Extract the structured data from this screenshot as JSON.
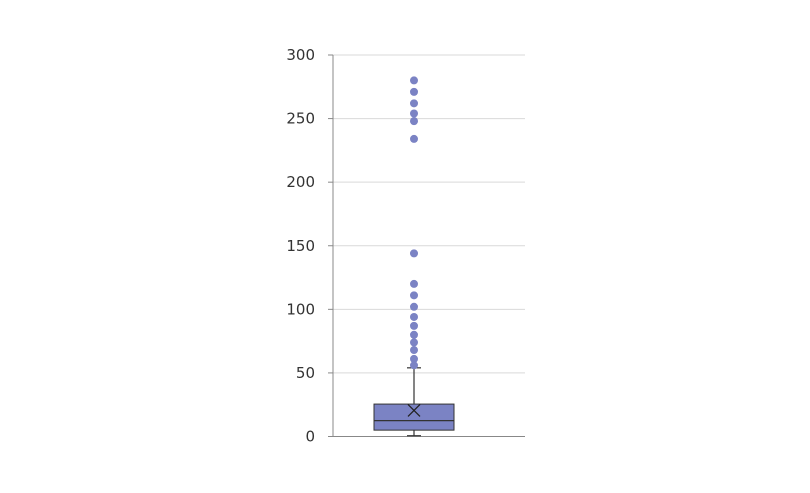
{
  "chart_data": {
    "type": "box",
    "title": "",
    "xlabel": "",
    "ylabel": "",
    "ylim": [
      0,
      300
    ],
    "yticks": [
      0,
      50,
      100,
      150,
      200,
      250,
      300
    ],
    "grid": true,
    "legend": "none",
    "color": "#7b83c4",
    "series": [
      {
        "whisker_low": 0.6,
        "q1": 5,
        "median": 12.5,
        "q3": 25.5,
        "whisker_high": 54,
        "mean": 20.5,
        "outliers": [
          56,
          61,
          68,
          74,
          80,
          87,
          94,
          102,
          111,
          120,
          144,
          234,
          248,
          254,
          262,
          271,
          280
        ]
      }
    ]
  }
}
